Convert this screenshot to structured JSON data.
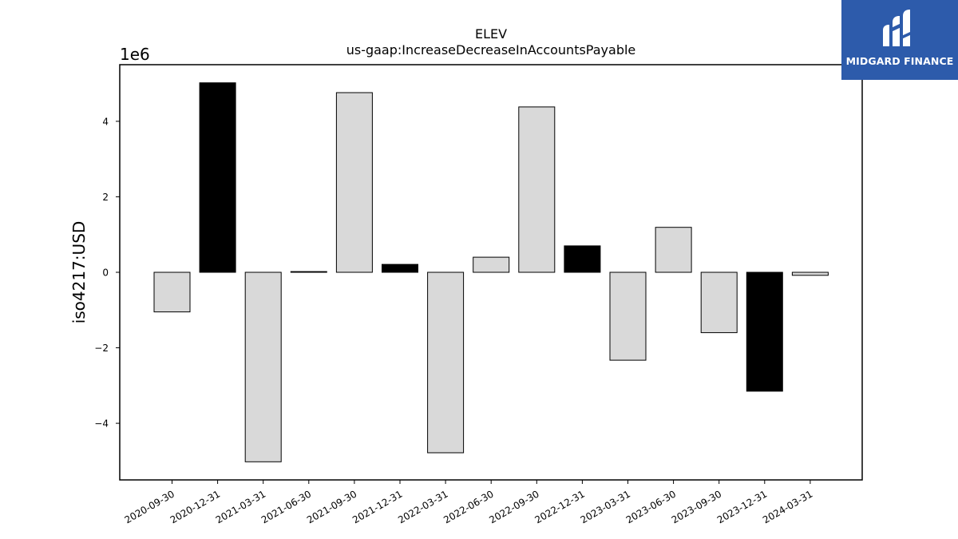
{
  "logo": {
    "text": "MIDGARD FINANCE",
    "background": "#2d5bab"
  },
  "chart_data": {
    "type": "bar",
    "title": "ELEV",
    "subtitle": "us-gaap:IncreaseDecreaseInAccountsPayable",
    "xlabel": "",
    "ylabel": "iso4217:USD",
    "y_scale_label": "1e6",
    "ylim": [
      -5.5,
      5.5
    ],
    "y_ticks": [
      -4,
      -2,
      0,
      2,
      4
    ],
    "y_tick_labels": [
      "−4",
      "−2",
      "0",
      "2",
      "4"
    ],
    "categories": [
      "2020-09-30",
      "2020-12-31",
      "2021-03-31",
      "2021-06-30",
      "2021-09-30",
      "2021-12-31",
      "2022-03-31",
      "2022-06-30",
      "2022-09-30",
      "2022-12-31",
      "2023-03-31",
      "2023-06-30",
      "2023-09-30",
      "2023-12-31",
      "2024-03-31"
    ],
    "values": [
      -1.05,
      5.02,
      -5.02,
      0.02,
      4.76,
      0.21,
      -4.78,
      0.4,
      4.38,
      0.7,
      -2.33,
      1.19,
      -1.6,
      -3.15,
      -0.08
    ],
    "colors": [
      "#d9d9d9",
      "#000000",
      "#d9d9d9",
      "#000000",
      "#d9d9d9",
      "#000000",
      "#d9d9d9",
      "#d9d9d9",
      "#d9d9d9",
      "#000000",
      "#d9d9d9",
      "#d9d9d9",
      "#d9d9d9",
      "#000000",
      "#d9d9d9"
    ],
    "grid": false,
    "legend": "none"
  }
}
